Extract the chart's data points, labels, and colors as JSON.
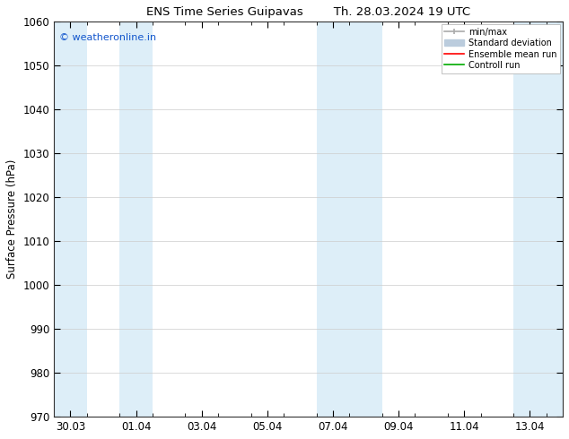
{
  "title_left": "ENS Time Series Guipavas",
  "title_right": "Th. 28.03.2024 19 UTC",
  "ylabel": "Surface Pressure (hPa)",
  "ylim": [
    970,
    1060
  ],
  "yticks": [
    970,
    980,
    990,
    1000,
    1010,
    1020,
    1030,
    1040,
    1050,
    1060
  ],
  "xtick_labels": [
    "30.03",
    "01.04",
    "03.04",
    "05.04",
    "07.04",
    "09.04",
    "11.04",
    "13.04"
  ],
  "xtick_positions": [
    0,
    2,
    4,
    6,
    8,
    10,
    12,
    14
  ],
  "xlim": [
    -0.5,
    15.0
  ],
  "watermark": "© weatheronline.in",
  "watermark_color": "#1155cc",
  "shaded_bands": [
    {
      "x_start": -0.5,
      "x_end": 0.5,
      "color": "#ddeef8"
    },
    {
      "x_start": 1.5,
      "x_end": 2.5,
      "color": "#ddeef8"
    },
    {
      "x_start": 7.5,
      "x_end": 8.5,
      "color": "#ddeef8"
    },
    {
      "x_start": 8.5,
      "x_end": 9.5,
      "color": "#ddeef8"
    },
    {
      "x_start": 13.5,
      "x_end": 15.0,
      "color": "#ddeef8"
    }
  ],
  "legend_entries": [
    {
      "label": "min/max",
      "color": "#aaaaaa",
      "lw": 1.2,
      "ls": "-",
      "type": "minmax"
    },
    {
      "label": "Standard deviation",
      "color": "#bbccdd",
      "lw": 8,
      "ls": "-",
      "type": "fill"
    },
    {
      "label": "Ensemble mean run",
      "color": "#ff0000",
      "lw": 1.2,
      "ls": "-",
      "type": "line"
    },
    {
      "label": "Controll run",
      "color": "#00aa00",
      "lw": 1.2,
      "ls": "-",
      "type": "line"
    }
  ],
  "bg_color": "#ffffff",
  "plot_bg_color": "#ffffff",
  "font_size": 8.5,
  "title_font_size": 9.5
}
